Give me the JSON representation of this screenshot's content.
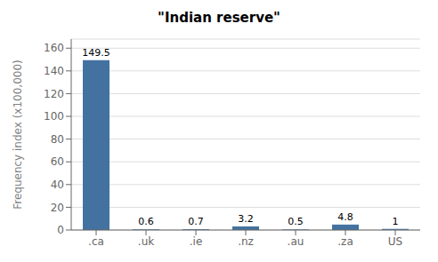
{
  "chart_data": {
    "type": "bar",
    "title": "\"Indian reserve\"",
    "categories": [
      ".ca",
      ".uk",
      ".ie",
      ".nz",
      ".au",
      ".za",
      "US"
    ],
    "values": [
      149.5,
      0.6,
      0.7,
      3.2,
      0.5,
      4.8,
      1
    ],
    "color": "#4472a0",
    "ylabel": "Frequency index (x100,000)",
    "ylim": [
      0,
      168
    ],
    "yticks": [
      0,
      20,
      40,
      60,
      80,
      100,
      120,
      140,
      160
    ],
    "grid": true,
    "data_labels": true
  }
}
